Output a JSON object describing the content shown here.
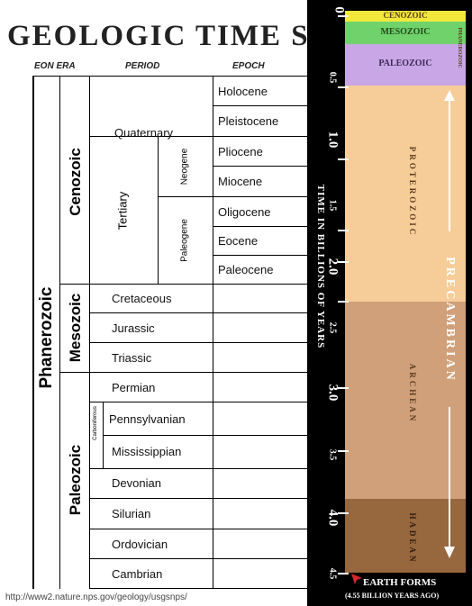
{
  "top_caption": "",
  "time_scale_table": {
    "title": "GEOLOGIC TIME SC",
    "headers": {
      "eon_era": "EON ERA",
      "period": "PERIOD",
      "epoch": "EPOCH"
    },
    "eon": "Phanerozoic",
    "eras": {
      "cenozoic": "Cenozoic",
      "mesozoic": "Mesozoic",
      "paleozoic": "Paleozoic"
    },
    "quaternary": "Quaternary",
    "tertiary": "Tertiary",
    "neogene": "Neogene",
    "paleogene": "Paleogene",
    "carboniferous": "Carboniferous",
    "epochs": [
      "Holocene",
      "Pleistocene",
      "Pliocene",
      "Miocene",
      "Oligocene",
      "Eocene",
      "Paleocene"
    ],
    "mesozoic_periods": [
      "Cretaceous",
      "Jurassic",
      "Triassic"
    ],
    "paleozoic_periods": [
      "Permian",
      "Pennsylvanian",
      "Mississippian",
      "Devonian",
      "Silurian",
      "Ordovician",
      "Cambrian"
    ],
    "source_url": "http://www2.nature.nps.gov/geology/usgsnps/"
  },
  "time_bar": {
    "axis_title": "TIME IN BILLIONS OF YEARS",
    "ticks": [
      "0",
      "0.5",
      "1.0",
      "1.5",
      "2.0",
      "2.5",
      "3.0",
      "3.5",
      "4.0",
      "4.5"
    ],
    "eras": [
      {
        "name": "CENOZOIC",
        "color": "#f2e83c"
      },
      {
        "name": "MESOZOIC",
        "color": "#6fd26a"
      },
      {
        "name": "PALEOZOIC",
        "color": "#c9a6e6"
      }
    ],
    "phanerozoic_label": "PHANEROZOIC",
    "eons": [
      {
        "name": "PROTEROZOIC",
        "color": "#f6cd98"
      },
      {
        "name": "ARCHEAN",
        "color": "#cfa07a"
      },
      {
        "name": "HADEAN",
        "color": "#97673e"
      }
    ],
    "supereon_label": "PRECAMBRIAN",
    "earth_forms": "EARTH FORMS",
    "earth_forms_sub": "(4.55 BILLION YEARS AGO)",
    "phanerozoic_color": "#c9a6e6",
    "text_dark": "#5a3a1e",
    "arrow_color": "#ffffff",
    "marker_color": "#d7262a"
  }
}
